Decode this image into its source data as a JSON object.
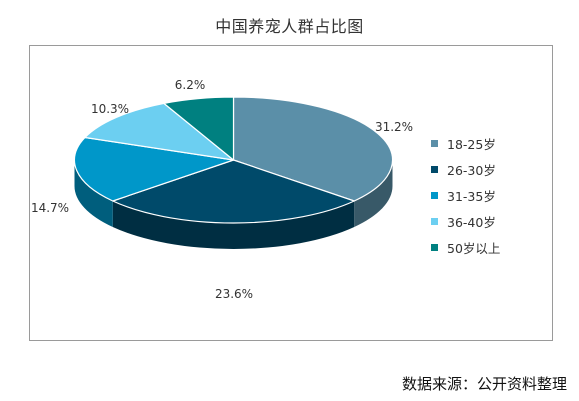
{
  "chart_data": {
    "type": "pie",
    "title": "中国养宠人群占比图",
    "categories": [
      "18-25岁",
      "26-30岁",
      "31-35岁",
      "36-40岁",
      "50岁以上"
    ],
    "values": [
      31.2,
      23.6,
      14.7,
      10.3,
      6.2
    ],
    "value_labels": [
      "31.2%",
      "23.6%",
      "14.7%",
      "10.3%",
      "6.2%"
    ],
    "colors": [
      "#5b8fa8",
      "#004a6a",
      "#0097c9",
      "#6ccff1",
      "#008080"
    ],
    "style": "3d",
    "legend_position": "right"
  },
  "source_note": "数据来源：公开资料整理"
}
